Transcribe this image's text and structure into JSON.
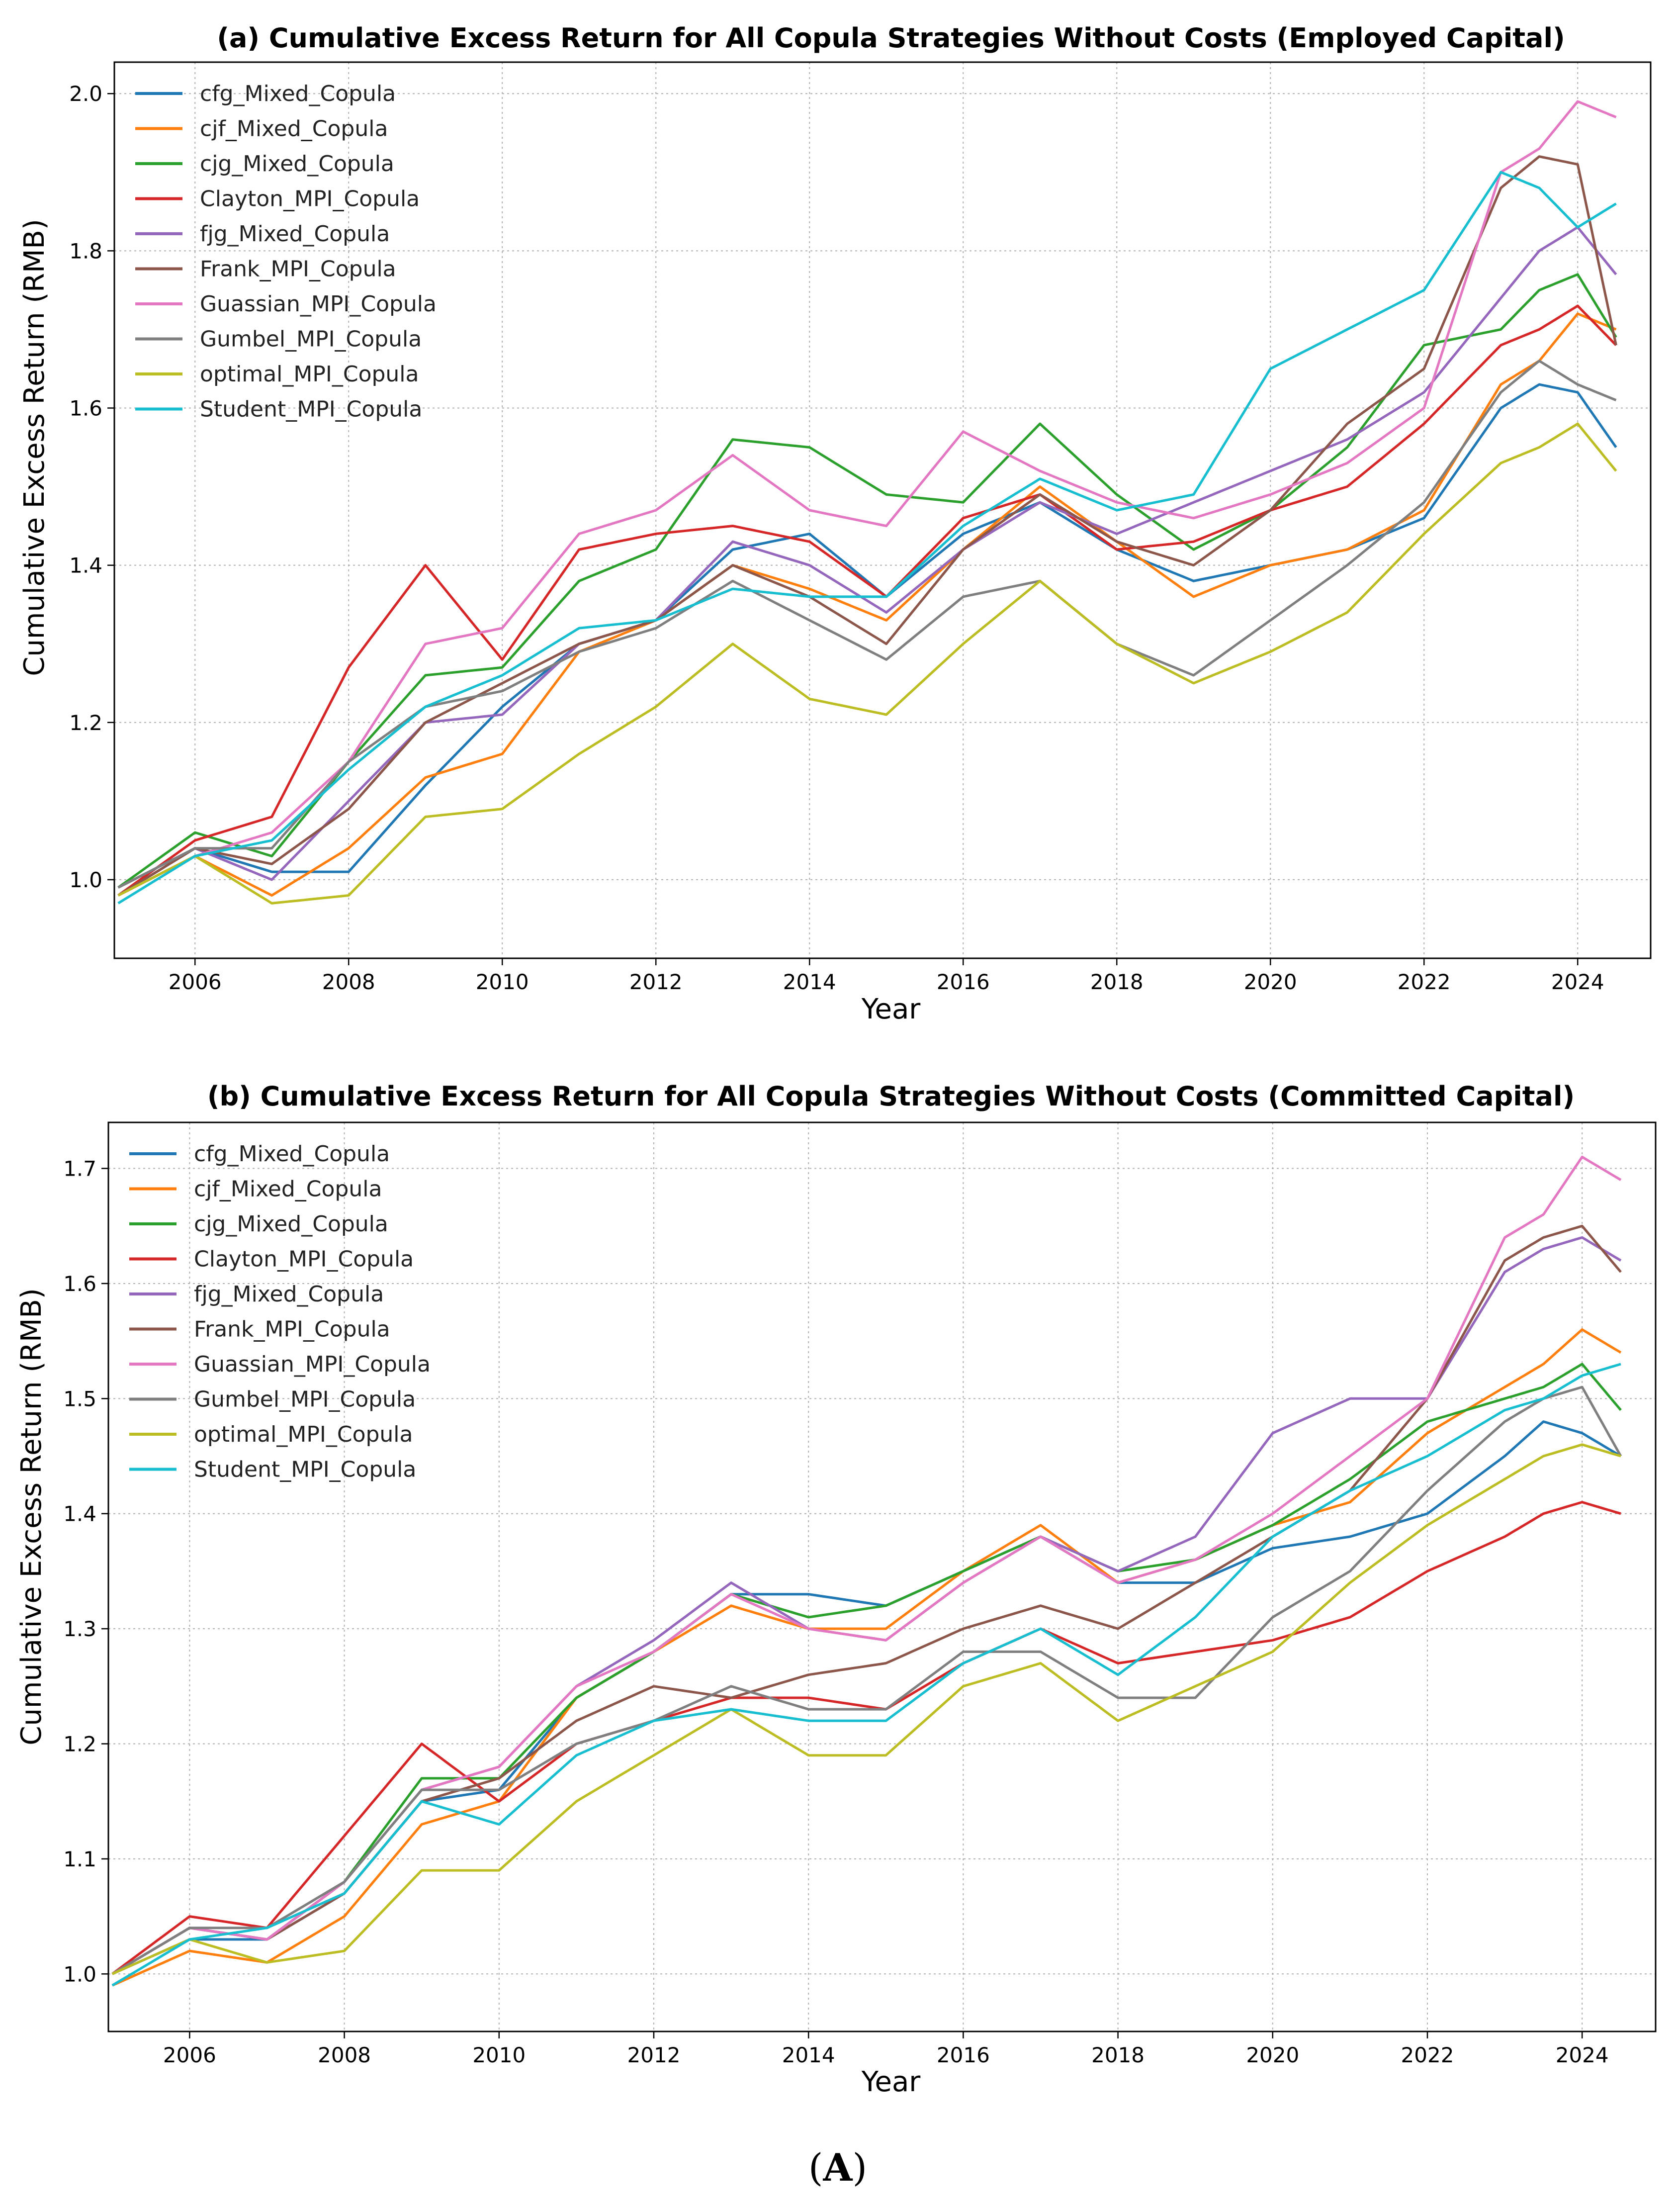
{
  "figure_caption": {
    "prefix": "(",
    "letter": "A",
    "suffix": ")"
  },
  "chart_data": [
    {
      "type": "line",
      "title": "(a) Cumulative Excess Return for All Copula Strategies Without Costs (Employed Capital)",
      "xlabel": "Year",
      "ylabel": "Cumulative Excess Return (RMB)",
      "xlim": [
        2004.95,
        2024.95
      ],
      "ylim": [
        0.9,
        2.04
      ],
      "x_ticks": [
        2006,
        2008,
        2010,
        2012,
        2014,
        2016,
        2018,
        2020,
        2022,
        2024
      ],
      "y_ticks": [
        "1.0",
        "1.2",
        "1.4",
        "1.6",
        "1.8",
        "2.0"
      ],
      "y_tick_values": [
        1.0,
        1.2,
        1.4,
        1.6,
        1.8,
        2.0
      ],
      "grid": true,
      "legend_position": "upper-left",
      "x": [
        2005,
        2006,
        2007,
        2008,
        2009,
        2010,
        2011,
        2012,
        2013,
        2014,
        2015,
        2016,
        2017,
        2018,
        2019,
        2020,
        2021,
        2022,
        2023,
        2023.5,
        2024,
        2024.5
      ],
      "series": [
        {
          "name": "cfg_Mixed_Copula",
          "color": "#1f77b4",
          "values": [
            0.98,
            1.04,
            1.01,
            1.01,
            1.12,
            1.22,
            1.3,
            1.33,
            1.42,
            1.44,
            1.36,
            1.44,
            1.48,
            1.42,
            1.38,
            1.4,
            1.42,
            1.46,
            1.6,
            1.63,
            1.62,
            1.55
          ]
        },
        {
          "name": "cjf_Mixed_Copula",
          "color": "#ff7f0e",
          "values": [
            0.98,
            1.03,
            0.98,
            1.04,
            1.13,
            1.16,
            1.29,
            1.33,
            1.4,
            1.37,
            1.33,
            1.42,
            1.5,
            1.43,
            1.36,
            1.4,
            1.42,
            1.47,
            1.63,
            1.66,
            1.72,
            1.7
          ]
        },
        {
          "name": "cjg_Mixed_Copula",
          "color": "#2ca02c",
          "values": [
            0.99,
            1.06,
            1.03,
            1.15,
            1.26,
            1.27,
            1.38,
            1.42,
            1.56,
            1.55,
            1.49,
            1.48,
            1.58,
            1.49,
            1.42,
            1.47,
            1.55,
            1.68,
            1.7,
            1.75,
            1.77,
            1.69
          ]
        },
        {
          "name": "Clayton_MPI_Copula",
          "color": "#d62728",
          "values": [
            0.98,
            1.05,
            1.08,
            1.27,
            1.4,
            1.28,
            1.42,
            1.44,
            1.45,
            1.43,
            1.36,
            1.46,
            1.49,
            1.42,
            1.43,
            1.47,
            1.5,
            1.58,
            1.68,
            1.7,
            1.73,
            1.68
          ]
        },
        {
          "name": "fjg_Mixed_Copula",
          "color": "#9467bd",
          "values": [
            0.99,
            1.04,
            1.0,
            1.1,
            1.2,
            1.21,
            1.3,
            1.33,
            1.43,
            1.4,
            1.34,
            1.42,
            1.48,
            1.44,
            1.48,
            1.52,
            1.56,
            1.62,
            1.74,
            1.8,
            1.83,
            1.77
          ]
        },
        {
          "name": "Frank_MPI_Copula",
          "color": "#8c564b",
          "values": [
            0.98,
            1.04,
            1.02,
            1.09,
            1.2,
            1.25,
            1.3,
            1.33,
            1.4,
            1.36,
            1.3,
            1.42,
            1.49,
            1.43,
            1.4,
            1.47,
            1.58,
            1.65,
            1.88,
            1.92,
            1.91,
            1.68
          ]
        },
        {
          "name": "Guassian_MPI_Copula",
          "color": "#e377c2",
          "values": [
            0.98,
            1.03,
            1.06,
            1.15,
            1.3,
            1.32,
            1.44,
            1.47,
            1.54,
            1.47,
            1.45,
            1.57,
            1.52,
            1.48,
            1.46,
            1.49,
            1.53,
            1.6,
            1.9,
            1.93,
            1.99,
            1.97
          ]
        },
        {
          "name": "Gumbel_MPI_Copula",
          "color": "#7f7f7f",
          "values": [
            0.99,
            1.04,
            1.04,
            1.15,
            1.22,
            1.24,
            1.29,
            1.32,
            1.38,
            1.33,
            1.28,
            1.36,
            1.38,
            1.3,
            1.26,
            1.33,
            1.4,
            1.48,
            1.62,
            1.66,
            1.63,
            1.61
          ]
        },
        {
          "name": "optimal_MPI_Copula",
          "color": "#bcbd22",
          "values": [
            0.98,
            1.03,
            0.97,
            0.98,
            1.08,
            1.09,
            1.16,
            1.22,
            1.3,
            1.23,
            1.21,
            1.3,
            1.38,
            1.3,
            1.25,
            1.29,
            1.34,
            1.44,
            1.53,
            1.55,
            1.58,
            1.52
          ]
        },
        {
          "name": "Student_MPI_Copula",
          "color": "#17becf",
          "values": [
            0.97,
            1.03,
            1.05,
            1.14,
            1.22,
            1.26,
            1.32,
            1.33,
            1.37,
            1.36,
            1.36,
            1.45,
            1.51,
            1.47,
            1.49,
            1.65,
            1.7,
            1.75,
            1.9,
            1.88,
            1.83,
            1.86
          ]
        }
      ]
    },
    {
      "type": "line",
      "title": "(b) Cumulative Excess Return for All Copula Strategies Without Costs (Committed Capital)",
      "xlabel": "Year",
      "ylabel": "Cumulative Excess Return (RMB)",
      "xlim": [
        2004.95,
        2024.95
      ],
      "ylim": [
        0.95,
        1.74
      ],
      "x_ticks": [
        2006,
        2008,
        2010,
        2012,
        2014,
        2016,
        2018,
        2020,
        2022,
        2024
      ],
      "y_ticks": [
        "1.0",
        "1.1",
        "1.2",
        "1.3",
        "1.4",
        "1.5",
        "1.6",
        "1.7"
      ],
      "y_tick_values": [
        1.0,
        1.1,
        1.2,
        1.3,
        1.4,
        1.5,
        1.6,
        1.7
      ],
      "grid": true,
      "legend_position": "upper-left",
      "x": [
        2005,
        2006,
        2007,
        2008,
        2009,
        2010,
        2011,
        2012,
        2013,
        2014,
        2015,
        2016,
        2017,
        2018,
        2019,
        2020,
        2021,
        2022,
        2023,
        2023.5,
        2024,
        2024.5
      ],
      "series": [
        {
          "name": "cfg_Mixed_Copula",
          "color": "#1f77b4",
          "values": [
            1.0,
            1.03,
            1.03,
            1.07,
            1.15,
            1.16,
            1.24,
            1.28,
            1.33,
            1.33,
            1.32,
            1.35,
            1.38,
            1.34,
            1.34,
            1.37,
            1.38,
            1.4,
            1.45,
            1.48,
            1.47,
            1.45
          ]
        },
        {
          "name": "cjf_Mixed_Copula",
          "color": "#ff7f0e",
          "values": [
            0.99,
            1.02,
            1.01,
            1.05,
            1.13,
            1.15,
            1.24,
            1.28,
            1.32,
            1.3,
            1.3,
            1.35,
            1.39,
            1.34,
            1.36,
            1.39,
            1.41,
            1.47,
            1.51,
            1.53,
            1.56,
            1.54
          ]
        },
        {
          "name": "cjg_Mixed_Copula",
          "color": "#2ca02c",
          "values": [
            1.0,
            1.04,
            1.03,
            1.08,
            1.17,
            1.17,
            1.24,
            1.28,
            1.33,
            1.31,
            1.32,
            1.35,
            1.38,
            1.35,
            1.36,
            1.39,
            1.43,
            1.48,
            1.5,
            1.51,
            1.53,
            1.49
          ]
        },
        {
          "name": "Clayton_MPI_Copula",
          "color": "#d62728",
          "values": [
            1.0,
            1.05,
            1.04,
            1.12,
            1.2,
            1.15,
            1.2,
            1.22,
            1.24,
            1.24,
            1.23,
            1.27,
            1.3,
            1.27,
            1.28,
            1.29,
            1.31,
            1.35,
            1.38,
            1.4,
            1.41,
            1.4
          ]
        },
        {
          "name": "fjg_Mixed_Copula",
          "color": "#9467bd",
          "values": [
            1.0,
            1.04,
            1.03,
            1.08,
            1.16,
            1.18,
            1.25,
            1.29,
            1.34,
            1.3,
            1.29,
            1.34,
            1.38,
            1.35,
            1.38,
            1.47,
            1.5,
            1.5,
            1.61,
            1.63,
            1.64,
            1.62
          ]
        },
        {
          "name": "Frank_MPI_Copula",
          "color": "#8c564b",
          "values": [
            1.0,
            1.04,
            1.03,
            1.07,
            1.15,
            1.17,
            1.22,
            1.25,
            1.24,
            1.26,
            1.27,
            1.3,
            1.32,
            1.3,
            1.34,
            1.38,
            1.42,
            1.5,
            1.62,
            1.64,
            1.65,
            1.61
          ]
        },
        {
          "name": "Guassian_MPI_Copula",
          "color": "#e377c2",
          "values": [
            1.0,
            1.04,
            1.03,
            1.08,
            1.16,
            1.18,
            1.25,
            1.28,
            1.33,
            1.3,
            1.29,
            1.34,
            1.38,
            1.34,
            1.36,
            1.4,
            1.45,
            1.5,
            1.64,
            1.66,
            1.71,
            1.69
          ]
        },
        {
          "name": "Gumbel_MPI_Copula",
          "color": "#7f7f7f",
          "values": [
            1.0,
            1.04,
            1.04,
            1.08,
            1.16,
            1.16,
            1.2,
            1.22,
            1.25,
            1.23,
            1.23,
            1.28,
            1.28,
            1.24,
            1.24,
            1.31,
            1.35,
            1.42,
            1.48,
            1.5,
            1.51,
            1.45
          ]
        },
        {
          "name": "optimal_MPI_Copula",
          "color": "#bcbd22",
          "values": [
            1.0,
            1.03,
            1.01,
            1.02,
            1.09,
            1.09,
            1.15,
            1.19,
            1.23,
            1.19,
            1.19,
            1.25,
            1.27,
            1.22,
            1.25,
            1.28,
            1.34,
            1.39,
            1.43,
            1.45,
            1.46,
            1.45
          ]
        },
        {
          "name": "Student_MPI_Copula",
          "color": "#17becf",
          "values": [
            0.99,
            1.03,
            1.04,
            1.07,
            1.15,
            1.13,
            1.19,
            1.22,
            1.23,
            1.22,
            1.22,
            1.27,
            1.3,
            1.26,
            1.31,
            1.38,
            1.42,
            1.45,
            1.49,
            1.5,
            1.52,
            1.53
          ]
        }
      ]
    }
  ]
}
